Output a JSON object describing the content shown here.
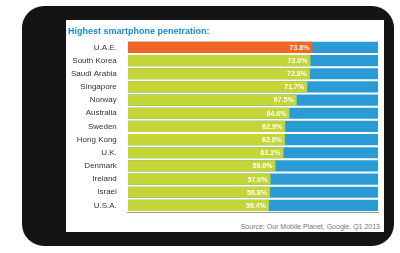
{
  "chart_data": {
    "type": "bar",
    "orientation": "horizontal",
    "title": "Highest smartphone penetration:",
    "categories": [
      "U.A.E.",
      "South Korea",
      "Saudi Arabia",
      "Singapore",
      "Norway",
      "Australia",
      "Sweden",
      "Hong Kong",
      "U.K.",
      "Denmark",
      "Ireland",
      "Israel",
      "U.S.A."
    ],
    "values": [
      73.8,
      73.0,
      72.8,
      71.7,
      67.5,
      64.6,
      62.9,
      62.8,
      62.2,
      59.0,
      57.0,
      56.8,
      56.4
    ],
    "value_labels": [
      "73.8%",
      "73.0%",
      "72.8%",
      "71.7%",
      "67.5%",
      "64.6%",
      "62.9%",
      "62.8%",
      "62.2%",
      "59.0%",
      "57.0%",
      "56.8%",
      "56.4%"
    ],
    "colors": [
      "#f26522",
      "#c5d536",
      "#c5d536",
      "#c5d536",
      "#c5d536",
      "#c5d536",
      "#c5d536",
      "#c5d536",
      "#c5d536",
      "#c5d536",
      "#c5d536",
      "#c5d536",
      "#c5d536"
    ],
    "xlim": [
      0,
      100
    ],
    "grid": false,
    "tick_labels": "y",
    "data_labels": true,
    "annotations": [
      "Source: Our Mobile Planet, Google, Q1 2013"
    ]
  }
}
